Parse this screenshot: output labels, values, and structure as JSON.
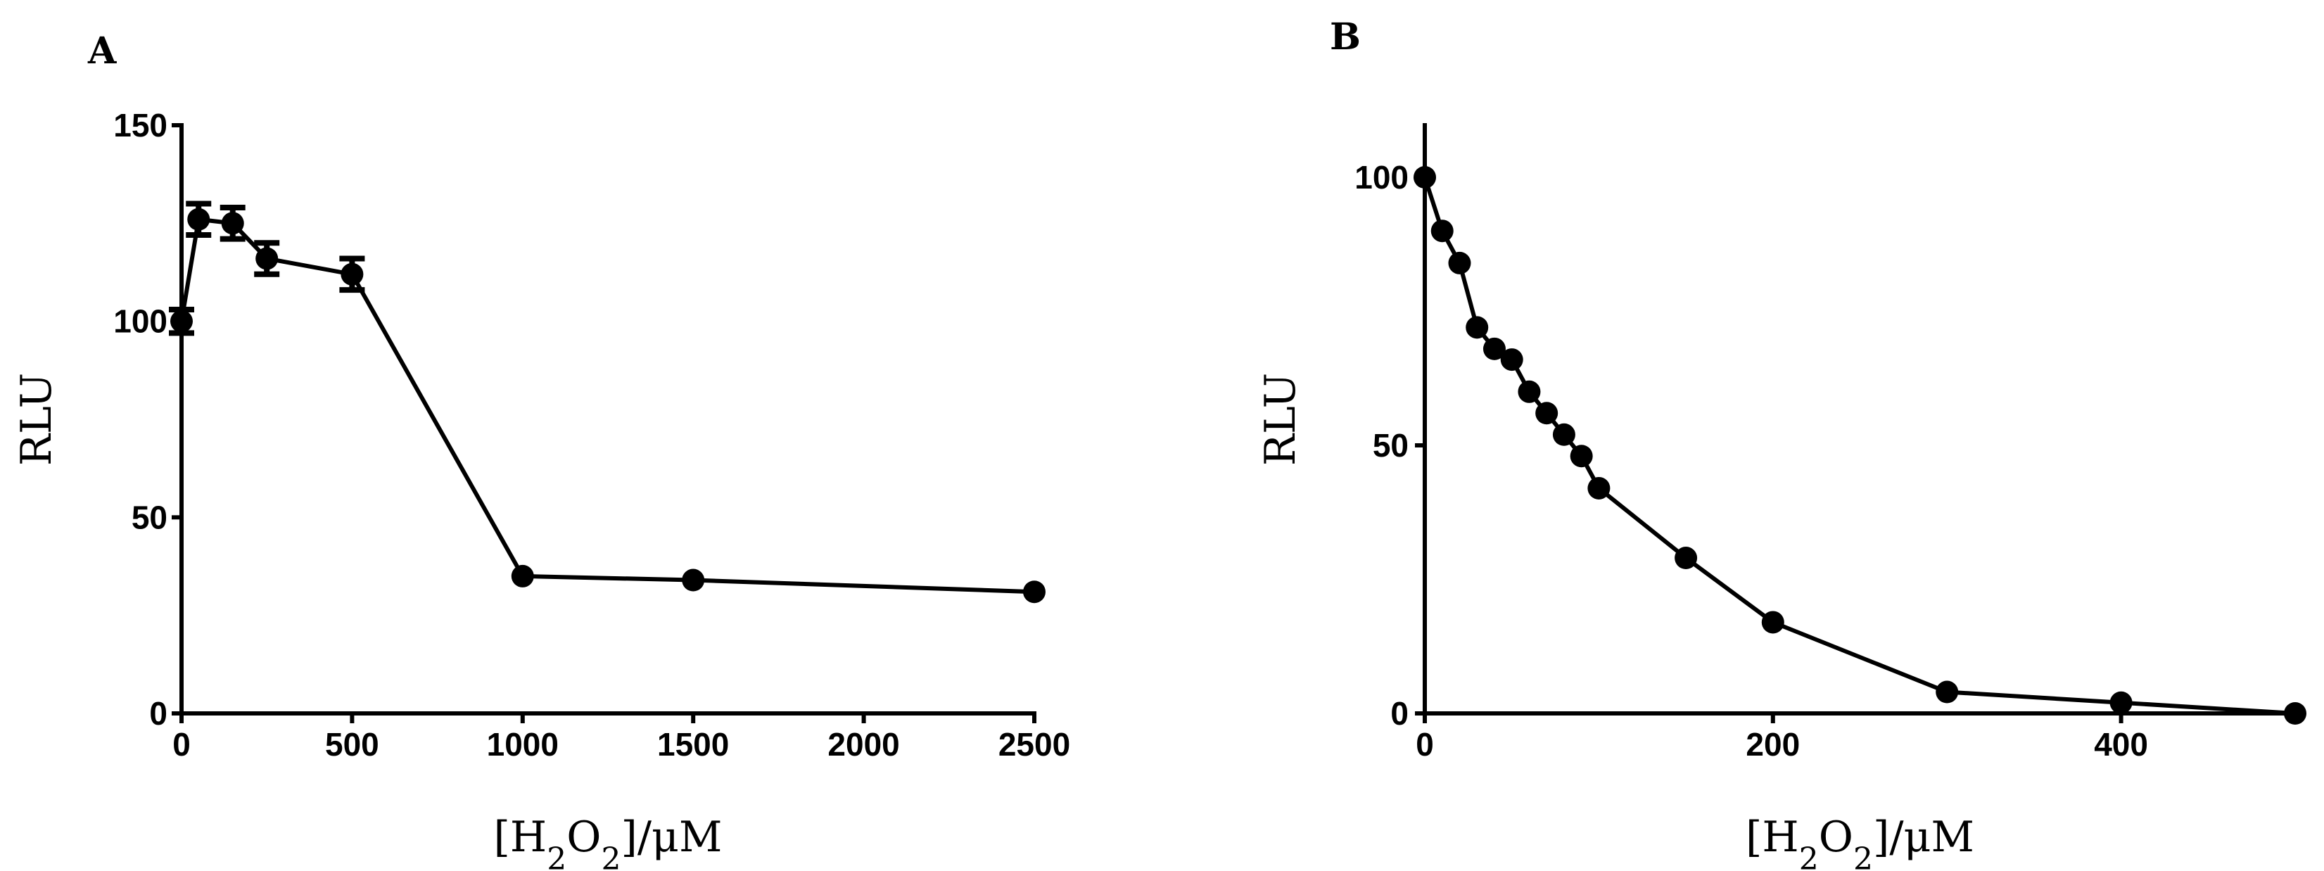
{
  "chart_data": [
    {
      "type": "line",
      "panel": "A",
      "xlabel": "[H2O2]/μM",
      "ylabel": "RLU",
      "xlim": [
        0,
        2500
      ],
      "ylim": [
        0,
        150
      ],
      "xticks": [
        "0",
        "500",
        "1000",
        "1500",
        "2000",
        "2500"
      ],
      "yticks": [
        "0",
        "50",
        "100",
        "150"
      ],
      "grid": false,
      "series": [
        {
          "x": [
            0,
            50,
            150,
            250,
            500,
            1000,
            1500,
            2500
          ],
          "y": [
            100,
            126,
            125,
            116,
            112,
            35,
            34,
            31
          ],
          "yerr": [
            3,
            4,
            4,
            4,
            4,
            0,
            0,
            0
          ]
        }
      ]
    },
    {
      "type": "line",
      "panel": "B",
      "xlabel": "[H2O2]/μM",
      "ylabel": "RLU",
      "xlim": [
        0,
        500
      ],
      "ylim": [
        0,
        100
      ],
      "xticks": [
        "0",
        "200",
        "400"
      ],
      "yticks": [
        "0",
        "50",
        "100"
      ],
      "grid": false,
      "series": [
        {
          "x": [
            0,
            10,
            20,
            30,
            40,
            50,
            60,
            70,
            80,
            90,
            100,
            150,
            200,
            300,
            400,
            500
          ],
          "y": [
            100,
            90,
            84,
            72,
            68,
            66,
            60,
            56,
            52,
            48,
            42,
            29,
            17,
            4,
            2,
            0
          ]
        }
      ]
    }
  ]
}
